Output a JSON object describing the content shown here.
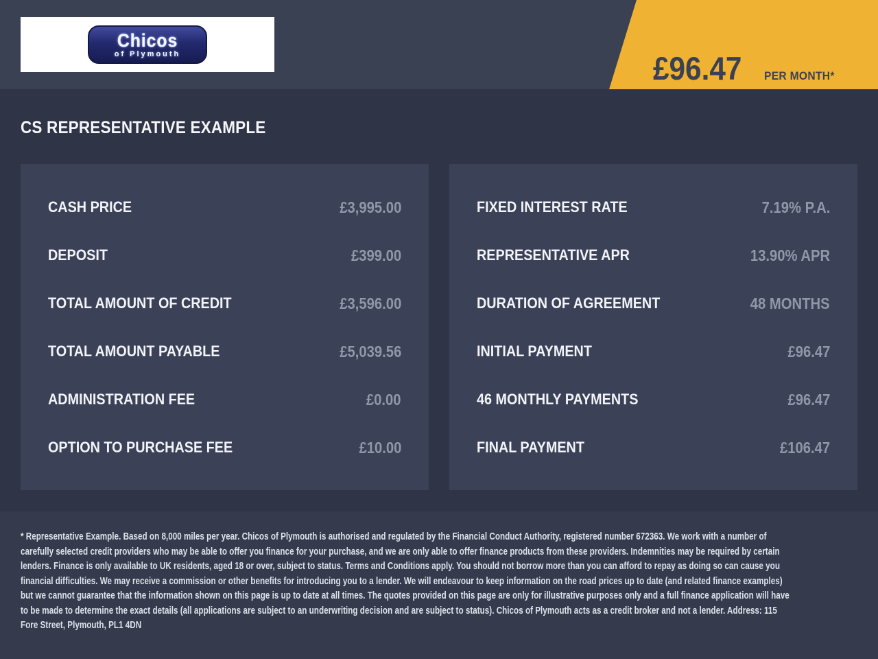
{
  "header": {
    "logo": {
      "name": "Chicos",
      "tagline": "of Plymouth"
    },
    "price_banner": {
      "amount": "£96.47",
      "per_label": "PER MONTH*"
    }
  },
  "main": {
    "heading": "CS REPRESENTATIVE EXAMPLE"
  },
  "panels": {
    "left": {
      "rows": [
        {
          "label": "CASH PRICE",
          "value": "£3,995.00"
        },
        {
          "label": "DEPOSIT",
          "value": "£399.00"
        },
        {
          "label": "TOTAL AMOUNT OF CREDIT",
          "value": "£3,596.00"
        },
        {
          "label": "TOTAL AMOUNT PAYABLE",
          "value": "£5,039.56"
        },
        {
          "label": "ADMINISTRATION FEE",
          "value": "£0.00"
        },
        {
          "label": "OPTION TO PURCHASE FEE",
          "value": "£10.00"
        }
      ]
    },
    "right": {
      "rows": [
        {
          "label": "FIXED INTEREST RATE",
          "value": "7.19% P.A."
        },
        {
          "label": "REPRESENTATIVE APR",
          "value": "13.90% APR"
        },
        {
          "label": "DURATION OF AGREEMENT",
          "value": "48 MONTHS"
        },
        {
          "label": "INITIAL PAYMENT",
          "value": "£96.47"
        },
        {
          "label": "46 MONTHLY PAYMENTS",
          "value": "£96.47"
        },
        {
          "label": "FINAL PAYMENT",
          "value": "£106.47"
        }
      ]
    }
  },
  "footer": {
    "disclaimer": "* Representative Example. Based on 8,000 miles per year. Chicos of Plymouth is authorised and regulated by the Financial Conduct Authority, registered number 672363. We work with a number of carefully selected credit providers who may be able to offer you finance for your purchase, and we are only able to offer finance products from these providers. Indemnities may be required by certain lenders. Finance is only available to UK residents, aged 18 or over, subject to status. Terms and Conditions apply. You should not borrow more than you can afford to repay as doing so can cause you financial difficulties. We may receive a commission or other benefits for introducing you to a lender. We will endeavour to keep information on the road prices up to date (and related finance examples) but we cannot guarantee that the information shown on this page is up to date at all times. The quotes provided on this page are only for illustrative purposes only and a full finance application will have to be made to determine the exact details (all applications are subject to an underwriting decision and are subject to status). Chicos of Plymouth acts as a credit broker and not a lender. Address: 115 Fore Street, Plymouth, PL1 4DN"
  },
  "colors": {
    "accent_yellow": "#f0b232",
    "background_dark": "#2f3446",
    "panel_navy": "#3b4156",
    "header_navy": "#3a4153",
    "footer_navy": "#353b4d",
    "value_grey": "#8f97a9",
    "logo_blue": "#232a6e"
  }
}
